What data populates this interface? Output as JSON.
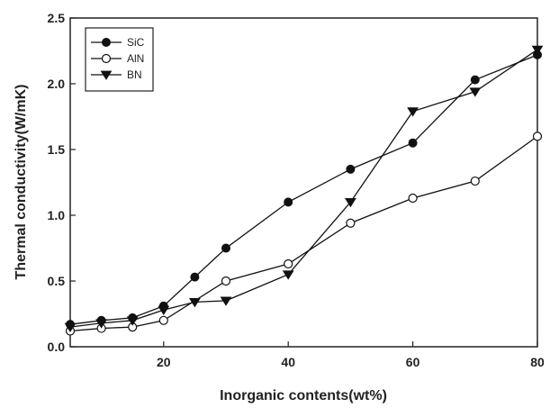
{
  "chart_data": {
    "type": "line",
    "title": "",
    "xlabel": "Inorganic contents(wt%)",
    "ylabel": "Thermal conductivity(W/mK)",
    "xlim": [
      5,
      80
    ],
    "ylim": [
      0.0,
      2.5
    ],
    "xticks": [
      20,
      40,
      60,
      80
    ],
    "yticks": [
      "0.0",
      "0.5",
      "1.0",
      "1.5",
      "2.0",
      "2.5"
    ],
    "grid": false,
    "legend_position": "top-left",
    "series": [
      {
        "name": "SiC",
        "marker": "filled-circle",
        "color": "#111111",
        "x": [
          5,
          10,
          15,
          20,
          25,
          30,
          40,
          50,
          60,
          70,
          80
        ],
        "y": [
          0.17,
          0.2,
          0.22,
          0.31,
          0.53,
          0.75,
          1.1,
          1.35,
          1.55,
          2.03,
          2.22
        ]
      },
      {
        "name": "AlN",
        "marker": "open-circle",
        "color": "#111111",
        "x": [
          5,
          10,
          15,
          20,
          30,
          40,
          50,
          60,
          70,
          80
        ],
        "y": [
          0.12,
          0.14,
          0.15,
          0.2,
          0.5,
          0.63,
          0.94,
          1.13,
          1.26,
          1.6
        ]
      },
      {
        "name": "BN",
        "marker": "filled-triangle-down",
        "color": "#111111",
        "x": [
          5,
          10,
          15,
          20,
          25,
          30,
          40,
          50,
          60,
          70,
          80
        ],
        "y": [
          0.15,
          0.18,
          0.2,
          0.28,
          0.34,
          0.35,
          0.55,
          1.1,
          1.79,
          1.94,
          2.26
        ]
      }
    ]
  }
}
